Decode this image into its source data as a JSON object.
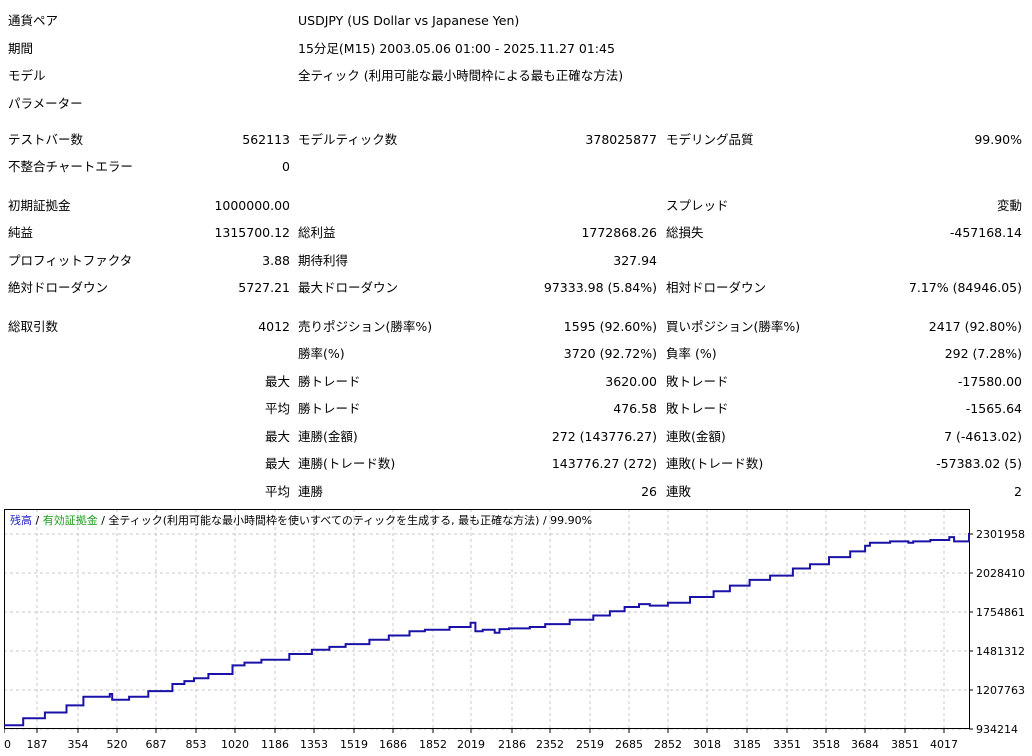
{
  "header": {
    "symbol_label": "通貨ペア",
    "symbol_value": "USDJPY (US Dollar vs Japanese Yen)",
    "period_label": "期間",
    "period_value": "15分足(M15) 2003.05.06 01:00 - 2025.11.27 01:45",
    "model_label": "モデル",
    "model_value": "全ティック (利用可能な最小時間枠による最も正確な方法)",
    "params_label": "パラメーター"
  },
  "stats": {
    "bars_label": "テストバー数",
    "bars_value": "562113",
    "ticks_label": "モデルティック数",
    "ticks_value": "378025877",
    "quality_label": "モデリング品質",
    "quality_value": "99.90%",
    "mismatch_label": "不整合チャートエラー",
    "mismatch_value": "0",
    "deposit_label": "初期証拠金",
    "deposit_value": "1000000.00",
    "spread_label": "スプレッド",
    "spread_value": "変動",
    "netprofit_label": "純益",
    "netprofit_value": "1315700.12",
    "grossprofit_label": "総利益",
    "grossprofit_value": "1772868.26",
    "grossloss_label": "総損失",
    "grossloss_value": "-457168.14",
    "pf_label": "プロフィットファクタ",
    "pf_value": "3.88",
    "expected_label": "期待利得",
    "expected_value": "327.94",
    "absdd_label": "絶対ドローダウン",
    "absdd_value": "5727.21",
    "maxdd_label": "最大ドローダウン",
    "maxdd_value": "97333.98 (5.84%)",
    "reldd_label": "相対ドローダウン",
    "reldd_value": "7.17% (84946.05)",
    "trades_label": "総取引数",
    "trades_value": "4012",
    "short_label": "売りポジション(勝率%)",
    "short_value": "1595 (92.60%)",
    "long_label": "買いポジション(勝率%)",
    "long_value": "2417 (92.80%)",
    "winrate_label": "勝率(%)",
    "winrate_value": "3720 (92.72%)",
    "lossrate_label": "負率 (%)",
    "lossrate_value": "292 (7.28%)",
    "max1_label": "最大",
    "maxwin_label": "勝トレード",
    "maxwin_value": "3620.00",
    "maxloss_label": "敗トレード",
    "maxloss_value": "-17580.00",
    "avg1_label": "平均",
    "avgwin_label": "勝トレード",
    "avgwin_value": "476.58",
    "avgloss_label": "敗トレード",
    "avgloss_value": "-1565.64",
    "max2_label": "最大",
    "consec_win_amt_label": "連勝(金額)",
    "consec_win_amt_value": "272 (143776.27)",
    "consec_loss_amt_label": "連敗(金額)",
    "consec_loss_amt_value": "7 (-4613.02)",
    "max3_label": "最大",
    "consec_win_cnt_label": "連勝(トレード数)",
    "consec_win_cnt_value": "143776.27 (272)",
    "consec_loss_cnt_label": "連敗(トレード数)",
    "consec_loss_cnt_value": "-57383.02 (5)",
    "avg2_label": "平均",
    "avg_consec_win_label": "連勝",
    "avg_consec_win_value": "26",
    "avg_consec_loss_label": "連敗",
    "avg_consec_loss_value": "2"
  },
  "chart_legend": {
    "balance": "残高",
    "sep1": " / ",
    "equity": "有効証拠金",
    "sep2": " / ",
    "model": "全ティック(利用可能な最小時間枠を使いすべてのティックを生成する, 最も正確な方法)",
    "sep3": " / ",
    "quality": "99.90%"
  },
  "colors": {
    "balance": "#1a12a8",
    "balance_legend": "#2323c8",
    "equity_legend": "#1aa01a",
    "grid": "#c8c8c8",
    "axis": "#000000"
  },
  "chart_data": {
    "type": "line",
    "title": "",
    "xlabel": "",
    "ylabel": "",
    "x_ticks": [
      "0",
      "187",
      "354",
      "520",
      "687",
      "853",
      "1020",
      "1186",
      "1353",
      "1519",
      "1686",
      "1852",
      "2019",
      "2186",
      "2352",
      "2519",
      "2685",
      "2852",
      "3018",
      "3185",
      "3351",
      "3518",
      "3684",
      "3851",
      "4017"
    ],
    "y_ticks": [
      "934214",
      "1207763",
      "1481312",
      "1754861",
      "2028410",
      "2301958"
    ],
    "ylim": [
      934214,
      2301958
    ],
    "xlim": [
      0,
      4012
    ],
    "grid": true,
    "series": [
      {
        "name": "残高",
        "x": [
          0,
          80,
          170,
          260,
          330,
          440,
          450,
          520,
          600,
          700,
          750,
          790,
          850,
          950,
          1000,
          1070,
          1186,
          1280,
          1353,
          1420,
          1519,
          1600,
          1686,
          1750,
          1852,
          1940,
          1960,
          1990,
          2040,
          2060,
          2100,
          2186,
          2250,
          2352,
          2450,
          2519,
          2580,
          2640,
          2685,
          2760,
          2852,
          2950,
          3018,
          3100,
          3185,
          3280,
          3351,
          3430,
          3518,
          3580,
          3600,
          3684,
          3760,
          3780,
          3851,
          3930,
          3950,
          4012
        ],
        "y": [
          960000,
          1010000,
          1050000,
          1100000,
          1160000,
          1180000,
          1140000,
          1160000,
          1200000,
          1250000,
          1270000,
          1290000,
          1320000,
          1380000,
          1400000,
          1420000,
          1460000,
          1490000,
          1510000,
          1530000,
          1560000,
          1590000,
          1620000,
          1630000,
          1650000,
          1680000,
          1620000,
          1630000,
          1610000,
          1635000,
          1640000,
          1650000,
          1670000,
          1700000,
          1730000,
          1760000,
          1790000,
          1810000,
          1800000,
          1820000,
          1860000,
          1900000,
          1940000,
          1980000,
          2010000,
          2060000,
          2090000,
          2140000,
          2180000,
          2220000,
          2240000,
          2250000,
          2240000,
          2250000,
          2260000,
          2280000,
          2250000,
          2310000
        ]
      }
    ]
  }
}
